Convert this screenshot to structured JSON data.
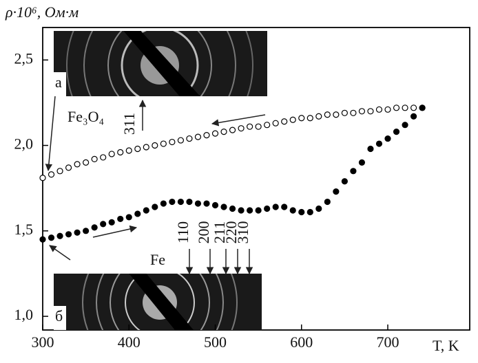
{
  "chart_data": {
    "type": "scatter",
    "title": "ρ·10⁶, Ом·м",
    "xlabel": "T, K",
    "x": [
      300,
      310,
      320,
      330,
      340,
      350,
      360,
      370,
      380,
      390,
      400,
      410,
      420,
      430,
      440,
      450,
      460,
      470,
      480,
      490,
      500,
      510,
      520,
      530,
      540,
      550,
      560,
      570,
      580,
      590,
      600,
      610,
      620,
      630,
      640,
      650,
      660,
      670,
      680,
      690,
      700,
      710,
      720,
      730,
      740
    ],
    "series": [
      {
        "color": "#000000",
        "marker": "open",
        "values": [
          1.81,
          1.83,
          1.85,
          1.87,
          1.89,
          1.9,
          1.92,
          1.93,
          1.95,
          1.96,
          1.97,
          1.98,
          1.99,
          2.0,
          2.01,
          2.02,
          2.03,
          2.04,
          2.05,
          2.06,
          2.07,
          2.08,
          2.09,
          2.1,
          2.11,
          2.11,
          2.12,
          2.13,
          2.14,
          2.15,
          2.16,
          2.16,
          2.17,
          2.18,
          2.18,
          2.19,
          2.19,
          2.2,
          2.2,
          2.21,
          2.21,
          2.22,
          2.22,
          2.22,
          2.22
        ]
      },
      {
        "color": "#000000",
        "marker": "filled",
        "values": [
          1.45,
          1.46,
          1.47,
          1.48,
          1.49,
          1.5,
          1.52,
          1.54,
          1.55,
          1.57,
          1.58,
          1.6,
          1.62,
          1.64,
          1.66,
          1.67,
          1.67,
          1.67,
          1.66,
          1.66,
          1.65,
          1.64,
          1.63,
          1.62,
          1.62,
          1.62,
          1.63,
          1.64,
          1.64,
          1.62,
          1.61,
          1.61,
          1.63,
          1.67,
          1.73,
          1.79,
          1.85,
          1.9,
          1.98,
          2.01,
          2.04,
          2.08,
          2.12,
          2.17,
          2.22
        ]
      }
    ],
    "xlim": [
      300,
      795
    ],
    "xticks": [
      300,
      400,
      500,
      600,
      700
    ],
    "ylim": [
      0.92,
      2.69
    ],
    "yticks": [
      {
        "value": 1.0,
        "label": "1,0"
      },
      {
        "value": 1.5,
        "label": "1,5"
      },
      {
        "value": 2.0,
        "label": "2,0"
      },
      {
        "value": 2.5,
        "label": "2,5"
      }
    ],
    "grid": false,
    "annotations": {
      "inset_a": "а",
      "inset_b": "б",
      "fe3o4": "Fe₃O₄",
      "fe3o4_peak": "311",
      "fe": "Fe",
      "fe_peaks": [
        "110",
        "200",
        "211",
        "220",
        "310"
      ]
    }
  }
}
